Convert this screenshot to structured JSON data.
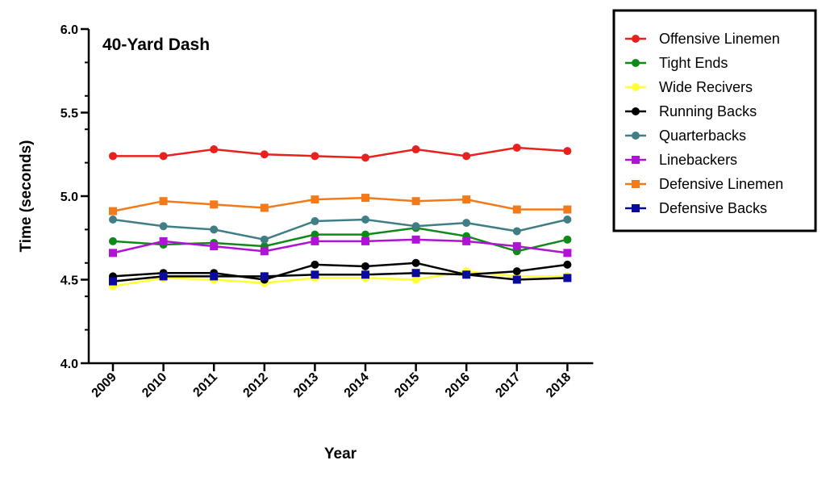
{
  "chart_data": {
    "type": "line",
    "title": "40-Yard Dash",
    "xlabel": "Year",
    "ylabel": "Time (seconds)",
    "ylim": [
      4.0,
      6.0
    ],
    "yticks": [
      "4.0",
      "4.5",
      "5.0",
      "5.5",
      "6.0"
    ],
    "categories": [
      "2009",
      "2010",
      "2011",
      "2012",
      "2013",
      "2014",
      "2015",
      "2016",
      "2017",
      "2018"
    ],
    "legend_position": "right",
    "series": [
      {
        "name": "Offensive Linemen",
        "color": "#e8211f",
        "marker": "circle",
        "values": [
          5.24,
          5.24,
          5.28,
          5.25,
          5.24,
          5.23,
          5.28,
          5.24,
          5.29,
          5.27
        ]
      },
      {
        "name": "Tight Ends",
        "color": "#0f8a1a",
        "marker": "circle",
        "values": [
          4.73,
          4.71,
          4.72,
          4.7,
          4.77,
          4.77,
          4.81,
          4.76,
          4.67,
          4.74
        ]
      },
      {
        "name": "Wide Recivers",
        "color": "#ffff33",
        "marker": "circle",
        "values": [
          4.46,
          4.51,
          4.5,
          4.48,
          4.51,
          4.51,
          4.5,
          4.55,
          4.52,
          4.52
        ]
      },
      {
        "name": "Running Backs",
        "color": "#000000",
        "marker": "circle",
        "values": [
          4.52,
          4.54,
          4.54,
          4.5,
          4.59,
          4.58,
          4.6,
          4.53,
          4.55,
          4.59
        ]
      },
      {
        "name": "Quarterbacks",
        "color": "#3f7f84",
        "marker": "circle",
        "values": [
          4.86,
          4.82,
          4.8,
          4.74,
          4.85,
          4.86,
          4.82,
          4.84,
          4.79,
          4.86
        ]
      },
      {
        "name": "Linebackers",
        "color": "#b012d6",
        "marker": "square",
        "values": [
          4.66,
          4.73,
          4.7,
          4.67,
          4.73,
          4.73,
          4.74,
          4.73,
          4.7,
          4.66
        ]
      },
      {
        "name": "Defensive Linemen",
        "color": "#f27a1a",
        "marker": "square",
        "values": [
          4.91,
          4.97,
          4.95,
          4.93,
          4.98,
          4.99,
          4.97,
          4.98,
          4.92,
          4.92
        ]
      },
      {
        "name": "Defensive Backs",
        "color": "#0a0a9e",
        "marker": "square",
        "values": [
          4.49,
          4.52,
          4.52,
          4.52,
          4.53,
          4.53,
          4.54,
          4.53,
          4.5,
          4.51
        ],
        "line_color": "#000000"
      }
    ]
  }
}
